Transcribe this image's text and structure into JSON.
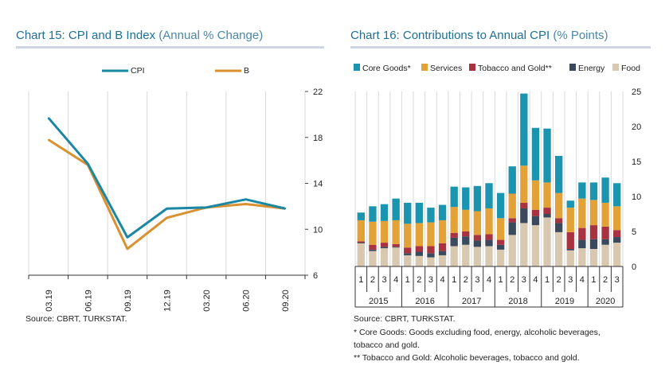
{
  "left": {
    "title": "Chart 15: CPI and B Index",
    "subtitle": "(Annual % Change)",
    "source": "Source: CBRT, TURKSTAT."
  },
  "right": {
    "title": "Chart 16: Contributions to Annual CPI",
    "subtitle": "(% Points)",
    "source": "Source: CBRT, TURKSTAT.",
    "footnotes": [
      "* Core Goods: Goods excluding food, energy, alcoholic beverages,",
      "tobacco and gold.",
      "** Tobacco and Gold: Alcoholic beverages, tobacco and gold."
    ]
  },
  "colors": {
    "cpi": "#1a87a4",
    "b": "#d9902f",
    "core_goods": "#1b94b0",
    "services": "#e3a238",
    "tobacco_gold": "#a8323f",
    "energy": "#3a4a5c",
    "food": "#d9c8b0",
    "grid": "#d9d9d9",
    "title": "#1d6f95"
  },
  "chart_data": [
    {
      "type": "line",
      "categories": [
        "03.19",
        "06.19",
        "09.19",
        "12.19",
        "03.20",
        "06.20",
        "09.20"
      ],
      "series": [
        {
          "name": "CPI",
          "values": [
            19.7,
            15.7,
            9.3,
            11.8,
            11.9,
            12.6,
            11.8
          ]
        },
        {
          "name": "B",
          "values": [
            17.8,
            15.6,
            8.3,
            11.0,
            11.9,
            12.2,
            11.8
          ]
        }
      ],
      "ylim": [
        6,
        22
      ],
      "yticks": [
        6,
        10,
        14,
        18,
        22
      ],
      "y_axis_side": "right",
      "grid": true,
      "legend": "top"
    },
    {
      "type": "bar",
      "stacked": true,
      "quarters": [
        "1",
        "2",
        "3",
        "4",
        "1",
        "2",
        "3",
        "4",
        "1",
        "2",
        "3",
        "4",
        "1",
        "2",
        "3",
        "4",
        "1",
        "2",
        "3",
        "4",
        "1",
        "2",
        "3"
      ],
      "years": [
        "2015",
        "2016",
        "2017",
        "2018",
        "2019",
        "2020"
      ],
      "series": [
        {
          "name": "Food",
          "values": [
            3.3,
            2.2,
            2.6,
            2.7,
            1.6,
            1.5,
            1.3,
            1.6,
            2.9,
            3.1,
            2.8,
            2.9,
            2.4,
            4.5,
            6.2,
            5.9,
            7.0,
            4.9,
            2.3,
            2.6,
            2.5,
            3.1,
            3.4
          ]
        },
        {
          "name": "Energy",
          "values": [
            0.1,
            0.2,
            0.2,
            0.1,
            0.3,
            0.6,
            0.6,
            0.6,
            1.2,
            1.2,
            0.9,
            0.9,
            0.7,
            1.8,
            2.1,
            1.3,
            0.5,
            1.3,
            0.2,
            1.2,
            1.4,
            0.8,
            0.8
          ]
        },
        {
          "name": "Tobacco and Gold**",
          "values": [
            0.2,
            0.7,
            0.6,
            0.4,
            0.8,
            0.8,
            1.0,
            1.1,
            0.7,
            0.7,
            0.8,
            0.8,
            0.7,
            0.6,
            0.8,
            0.9,
            0.9,
            0.7,
            2.4,
            1.7,
            2.0,
            1.8,
            1.0
          ]
        },
        {
          "name": "Services",
          "values": [
            3.0,
            3.3,
            3.1,
            3.4,
            3.4,
            3.3,
            3.4,
            3.3,
            3.7,
            3.1,
            3.4,
            3.7,
            3.1,
            3.5,
            5.3,
            4.2,
            3.6,
            3.6,
            3.5,
            4.2,
            3.6,
            3.4,
            3.4
          ]
        },
        {
          "name": "Core Goods*",
          "values": [
            1.1,
            2.2,
            2.4,
            3.1,
            3.0,
            2.9,
            2.1,
            2.2,
            2.9,
            3.2,
            3.6,
            3.6,
            3.6,
            3.9,
            10.3,
            7.5,
            7.7,
            5.3,
            1.0,
            2.3,
            2.5,
            3.6,
            3.3
          ]
        }
      ],
      "legend_order": [
        "Core Goods*",
        "Services",
        "Tobacco and Gold**",
        "Energy",
        "Food"
      ],
      "ylim": [
        0,
        25
      ],
      "yticks": [
        0,
        5,
        10,
        15,
        20,
        25
      ],
      "y_axis_side": "right",
      "grid": true,
      "legend": "top"
    }
  ]
}
